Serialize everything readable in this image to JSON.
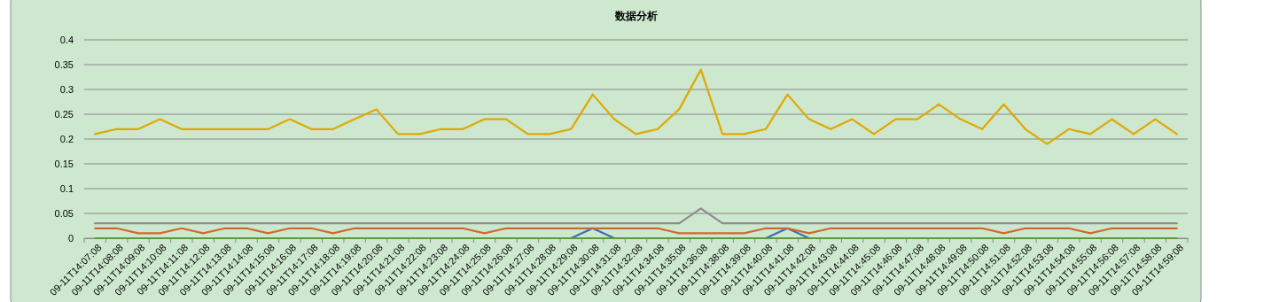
{
  "chart_data": {
    "type": "line",
    "title": "数据分析",
    "categories": [
      "09-11T14:07:08",
      "09-11T14:08:08",
      "09-11T14:09:08",
      "09-11T14:10:08",
      "09-11T14:11:08",
      "09-11T14:12:08",
      "09-11T14:13:08",
      "09-11T14:14:08",
      "09-11T14:15:08",
      "09-11T14:16:08",
      "09-11T14:17:08",
      "09-11T14:18:08",
      "09-11T14:19:08",
      "09-11T14:20:08",
      "09-11T14:21:08",
      "09-11T14:22:08",
      "09-11T14:23:08",
      "09-11T14:24:08",
      "09-11T14:25:08",
      "09-11T14:26:08",
      "09-11T14:27:08",
      "09-11T14:28:08",
      "09-11T14:29:08",
      "09-11T14:30:08",
      "09-11T14:31:08",
      "09-11T14:32:08",
      "09-11T14:34:08",
      "09-11T14:35:08",
      "09-11T14:36:08",
      "09-11T14:38:08",
      "09-11T14:39:08",
      "09-11T14:40:08",
      "09-11T14:41:08",
      "09-11T14:42:08",
      "09-11T14:43:08",
      "09-11T14:44:08",
      "09-11T14:45:08",
      "09-11T14:46:08",
      "09-11T14:47:08",
      "09-11T14:48:08",
      "09-11T14:49:08",
      "09-11T14:50:08",
      "09-11T14:51:08",
      "09-11T14:52:08",
      "09-11T14:53:08",
      "09-11T14:54:08",
      "09-11T14:55:08",
      "09-11T14:56:08",
      "09-11T14:57:08",
      "09-11T14:58:08",
      "09-11T14:59:08"
    ],
    "series": [
      {
        "color": "#3f6cb8",
        "values": [
          null,
          null,
          null,
          null,
          null,
          null,
          null,
          null,
          null,
          null,
          null,
          null,
          null,
          null,
          null,
          null,
          null,
          null,
          null,
          null,
          null,
          null,
          0,
          0.02,
          0,
          null,
          null,
          null,
          null,
          null,
          null,
          0,
          0.02,
          0,
          null,
          null,
          null,
          null,
          null,
          null,
          null,
          null,
          null,
          null,
          null,
          null,
          null,
          null,
          null,
          null,
          null
        ]
      },
      {
        "color": "#d0682e",
        "values": [
          0.02,
          0.02,
          0.01,
          0.01,
          0.02,
          0.01,
          0.02,
          0.02,
          0.01,
          0.02,
          0.02,
          0.01,
          0.02,
          0.02,
          0.02,
          0.02,
          0.02,
          0.02,
          0.01,
          0.02,
          0.02,
          0.02,
          0.02,
          0.02,
          0.02,
          0.02,
          0.02,
          0.01,
          0.01,
          0.01,
          0.01,
          0.02,
          0.02,
          0.01,
          0.02,
          0.02,
          0.02,
          0.02,
          0.02,
          0.02,
          0.02,
          0.02,
          0.01,
          0.02,
          0.02,
          0.02,
          0.01,
          0.02,
          0.02,
          0.02,
          0.02
        ]
      },
      {
        "color": "#8c8c8c",
        "values": [
          0.03,
          0.03,
          0.03,
          0.03,
          0.03,
          0.03,
          0.03,
          0.03,
          0.03,
          0.03,
          0.03,
          0.03,
          0.03,
          0.03,
          0.03,
          0.03,
          0.03,
          0.03,
          0.03,
          0.03,
          0.03,
          0.03,
          0.03,
          0.03,
          0.03,
          0.03,
          0.03,
          0.03,
          0.06,
          0.03,
          0.03,
          0.03,
          0.03,
          0.03,
          0.03,
          0.03,
          0.03,
          0.03,
          0.03,
          0.03,
          0.03,
          0.03,
          0.03,
          0.03,
          0.03,
          0.03,
          0.03,
          0.03,
          0.03,
          0.03,
          0.03
        ]
      },
      {
        "color": "#e0a800",
        "values": [
          0.21,
          0.22,
          0.22,
          0.24,
          0.22,
          0.22,
          0.22,
          0.22,
          0.22,
          0.24,
          0.22,
          0.22,
          0.24,
          0.26,
          0.21,
          0.21,
          0.22,
          0.22,
          0.24,
          0.24,
          0.21,
          0.21,
          0.22,
          0.29,
          0.24,
          0.21,
          0.22,
          0.26,
          0.34,
          0.21,
          0.21,
          0.22,
          0.29,
          0.24,
          0.22,
          0.24,
          0.21,
          0.24,
          0.24,
          0.27,
          0.24,
          0.22,
          0.27,
          0.22,
          0.19,
          0.22,
          0.21,
          0.24,
          0.21,
          0.24,
          0.21
        ]
      },
      {
        "color": "#5b9a3c",
        "values": [
          0,
          0,
          0,
          0,
          0,
          0,
          0,
          0,
          0,
          0,
          0,
          0,
          0,
          0,
          0,
          0,
          0,
          0,
          0,
          0,
          0,
          0,
          0,
          0,
          0,
          0,
          0,
          0,
          0,
          0,
          0,
          0,
          0,
          0,
          0,
          0,
          0,
          0,
          0,
          0,
          0,
          0,
          0,
          0,
          0,
          0,
          0,
          0,
          0,
          0,
          0
        ]
      }
    ],
    "ylim": [
      0,
      0.4
    ],
    "yticks": [
      0,
      0.05,
      0.1,
      0.15,
      0.2,
      0.25,
      0.3,
      0.35,
      0.4
    ],
    "grid": "y",
    "marker": "none",
    "line_style": "solid"
  }
}
